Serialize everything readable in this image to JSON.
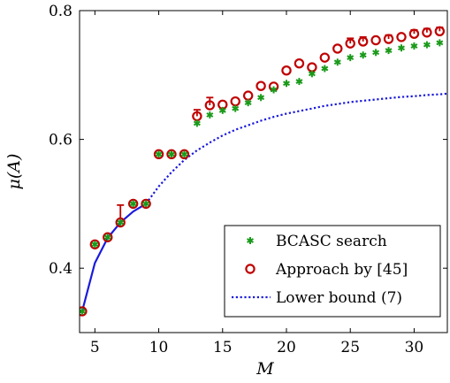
{
  "chart_data": {
    "type": "scatter",
    "xlabel": "M",
    "ylabel": "μ(A)",
    "xlim": [
      3.8,
      32.6
    ],
    "ylim": [
      0.3,
      0.8
    ],
    "xticks": [
      5,
      10,
      15,
      20,
      25,
      30
    ],
    "yticks": [
      0.4,
      0.6,
      0.8
    ],
    "ytick_labels": [
      "0.4",
      "0.6",
      "0.8"
    ],
    "legend_position": "bottom-right",
    "series": [
      {
        "name": "BCASC search",
        "marker": "asterisk",
        "color": "#1a9a1a",
        "x": [
          4,
          5,
          6,
          7,
          8,
          9,
          10,
          11,
          12,
          13,
          14,
          15,
          16,
          17,
          18,
          19,
          20,
          21,
          22,
          23,
          24,
          25,
          26,
          27,
          28,
          29,
          30,
          31,
          32
        ],
        "y": [
          0.333,
          0.437,
          0.448,
          0.471,
          0.5,
          0.5,
          0.577,
          0.577,
          0.577,
          0.625,
          0.638,
          0.645,
          0.648,
          0.657,
          0.665,
          0.677,
          0.687,
          0.69,
          0.702,
          0.71,
          0.72,
          0.727,
          0.731,
          0.735,
          0.738,
          0.742,
          0.745,
          0.747,
          0.75
        ]
      },
      {
        "name": "Approach by [45]",
        "marker": "circle",
        "color": "#c00000",
        "x": [
          4,
          5,
          6,
          7,
          8,
          9,
          10,
          11,
          12,
          13,
          14,
          15,
          16,
          17,
          18,
          19,
          20,
          21,
          22,
          23,
          24,
          25,
          26,
          27,
          28,
          29,
          30,
          31,
          32
        ],
        "y": [
          0.333,
          0.437,
          0.448,
          0.471,
          0.5,
          0.5,
          0.577,
          0.577,
          0.577,
          0.636,
          0.653,
          0.654,
          0.659,
          0.668,
          0.683,
          0.682,
          0.707,
          0.718,
          0.712,
          0.727,
          0.741,
          0.749,
          0.752,
          0.754,
          0.756,
          0.759,
          0.764,
          0.766,
          0.768
        ],
        "errors": [
          0,
          0,
          0,
          0.027,
          0,
          0,
          0,
          0,
          0,
          0.01,
          0.012,
          0,
          0,
          0,
          0,
          0,
          0,
          0,
          0,
          0,
          0,
          0.008,
          0.007,
          0,
          0.006,
          0,
          0.006,
          0.006,
          0.006
        ]
      },
      {
        "name": "Lower bound (7)",
        "style": "dotted-line",
        "solid_until_x": 9,
        "color": "#1a1adc",
        "x": [
          4,
          5,
          6,
          7,
          8,
          9,
          10,
          11,
          12,
          13,
          14,
          15,
          16,
          17,
          18,
          19,
          20,
          21,
          22,
          23,
          24,
          25,
          26,
          27,
          28,
          29,
          30,
          31,
          32,
          32.6
        ],
        "y": [
          0.333,
          0.408,
          0.447,
          0.471,
          0.488,
          0.5,
          0.527,
          0.549,
          0.568,
          0.583,
          0.595,
          0.606,
          0.615,
          0.622,
          0.629,
          0.635,
          0.64,
          0.644,
          0.648,
          0.652,
          0.655,
          0.658,
          0.66,
          0.662,
          0.664,
          0.666,
          0.667,
          0.669,
          0.67,
          0.671
        ]
      }
    ]
  }
}
